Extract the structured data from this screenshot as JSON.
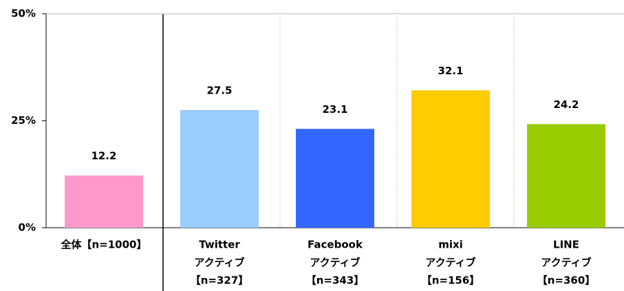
{
  "chart_data": {
    "type": "bar",
    "categories": [
      [
        "全体【n=1000】"
      ],
      [
        "Twitter",
        "アクティブ",
        "【n=327】"
      ],
      [
        "Facebook",
        "アクティブ",
        "【n=343】"
      ],
      [
        "mixi",
        "アクティブ",
        "【n=156】"
      ],
      [
        "LINE",
        "アクティブ",
        "【n=360】"
      ]
    ],
    "values": [
      12.2,
      27.5,
      23.1,
      32.1,
      24.2
    ],
    "colors": [
      "#ff99cc",
      "#99ccff",
      "#3366ff",
      "#ffcc00",
      "#99cc00"
    ],
    "ylim": [
      0,
      50
    ],
    "yticks": [
      {
        "value": 0,
        "label": "0%"
      },
      {
        "value": 25,
        "label": "25%"
      },
      {
        "value": 50,
        "label": "50%"
      }
    ]
  }
}
